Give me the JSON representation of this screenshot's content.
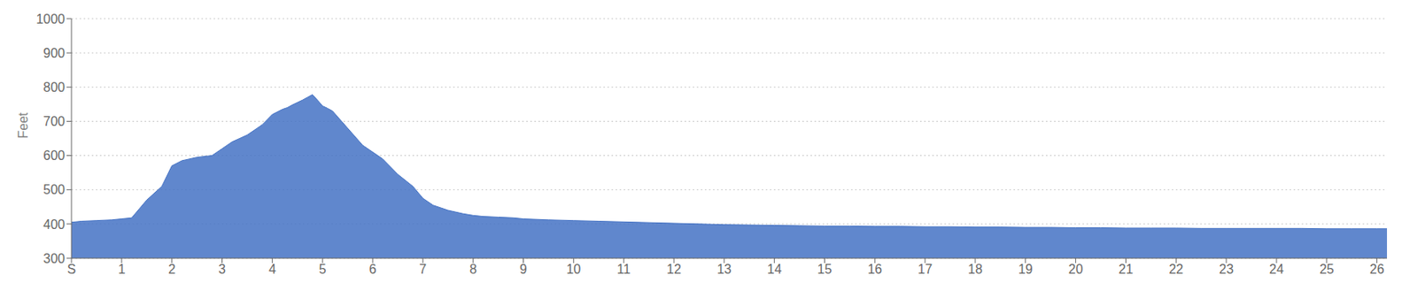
{
  "chart_data": {
    "type": "area",
    "ylabel": "Feet",
    "color": "#4472c4",
    "grid": "y",
    "xlim": [
      0,
      26.2
    ],
    "xticks": [
      {
        "value": 0,
        "label": "S"
      },
      1,
      2,
      3,
      4,
      5,
      6,
      7,
      8,
      9,
      10,
      11,
      12,
      13,
      14,
      15,
      16,
      17,
      18,
      19,
      20,
      21,
      22,
      23,
      24,
      25,
      26
    ],
    "ylim": [
      300,
      1000
    ],
    "yticks": [
      300,
      400,
      500,
      600,
      700,
      800,
      900,
      1000
    ],
    "x": [
      0,
      0.2,
      0.5,
      0.8,
      1.0,
      1.2,
      1.5,
      1.8,
      2.0,
      2.2,
      2.5,
      2.8,
      3.0,
      3.2,
      3.5,
      3.8,
      4.0,
      4.2,
      4.3,
      4.4,
      4.5,
      4.6,
      4.7,
      4.8,
      4.9,
      5.0,
      5.1,
      5.2,
      5.5,
      5.8,
      6.0,
      6.2,
      6.5,
      6.8,
      7.0,
      7.2,
      7.5,
      7.8,
      8.0,
      8.2,
      8.5,
      8.8,
      9.0,
      9.5,
      10.0,
      10.5,
      11.0,
      11.5,
      12.0,
      12.5,
      13.0,
      13.5,
      14.0,
      14.5,
      15.0,
      15.5,
      16.0,
      16.5,
      17.0,
      17.5,
      18.0,
      18.5,
      19.0,
      19.5,
      20.0,
      20.5,
      21.0,
      21.5,
      22.0,
      22.5,
      23.0,
      23.5,
      24.0,
      24.5,
      25.0,
      25.5,
      26.0,
      26.2
    ],
    "values": [
      405,
      408,
      410,
      412,
      415,
      418,
      470,
      510,
      570,
      585,
      595,
      600,
      620,
      640,
      660,
      690,
      720,
      735,
      740,
      748,
      755,
      762,
      770,
      778,
      762,
      745,
      738,
      730,
      680,
      630,
      610,
      590,
      545,
      510,
      475,
      455,
      440,
      430,
      425,
      422,
      420,
      418,
      415,
      412,
      410,
      408,
      406,
      404,
      402,
      400,
      398,
      397,
      396,
      395,
      394,
      394,
      393,
      393,
      392,
      392,
      391,
      391,
      390,
      390,
      389,
      389,
      388,
      388,
      388,
      387,
      387,
      387,
      387,
      387,
      386,
      386,
      386,
      386
    ]
  }
}
